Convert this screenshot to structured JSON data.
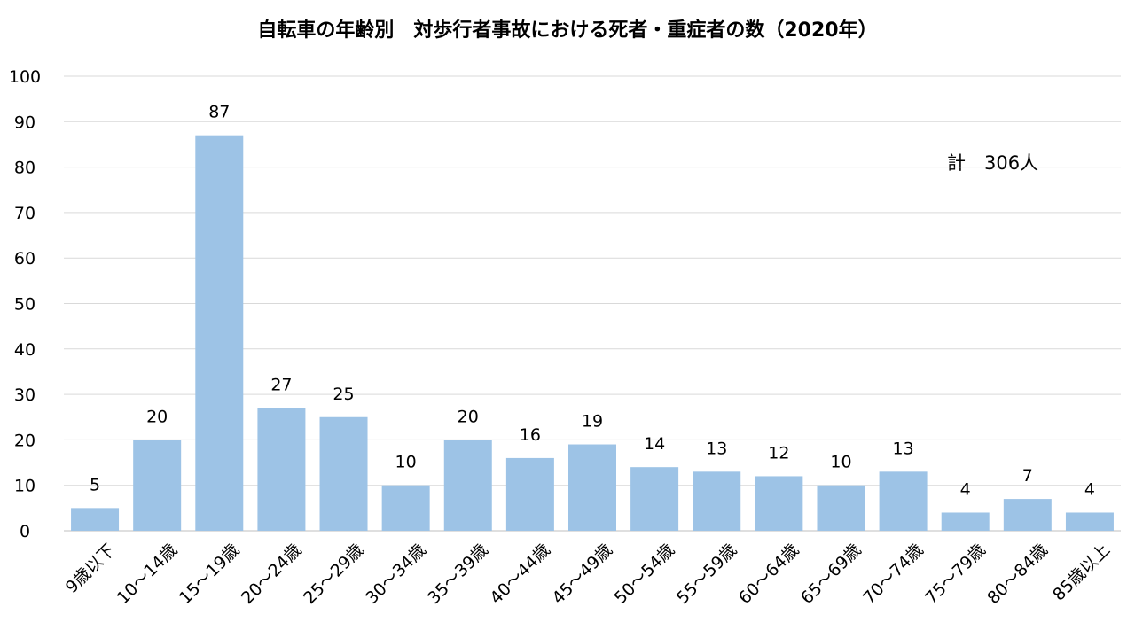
{
  "chart_data": {
    "type": "bar",
    "title": "自転車の年齢別　対歩行者事故における死者・重症者の数（2020年）",
    "annotation": "計　306人",
    "categories": [
      "9歳以下",
      "10～14歳",
      "15～19歳",
      "20～24歳",
      "25～29歳",
      "30～34歳",
      "35～39歳",
      "40～44歳",
      "45～49歳",
      "50～54歳",
      "55～59歳",
      "60～64歳",
      "65～69歳",
      "70～74歳",
      "75～79歳",
      "80～84歳",
      "85歳以上"
    ],
    "values": [
      5,
      20,
      87,
      27,
      25,
      10,
      20,
      16,
      19,
      14,
      13,
      12,
      10,
      13,
      4,
      7,
      4
    ],
    "y_ticks": [
      "0",
      "10",
      "20",
      "30",
      "40",
      "50",
      "60",
      "70",
      "80",
      "90",
      "100"
    ],
    "ylim": [
      0,
      100
    ],
    "grid": true,
    "bar_color": "#9dc3e6",
    "grid_color": "#d9d9d9",
    "xlabel": "",
    "ylabel": ""
  }
}
